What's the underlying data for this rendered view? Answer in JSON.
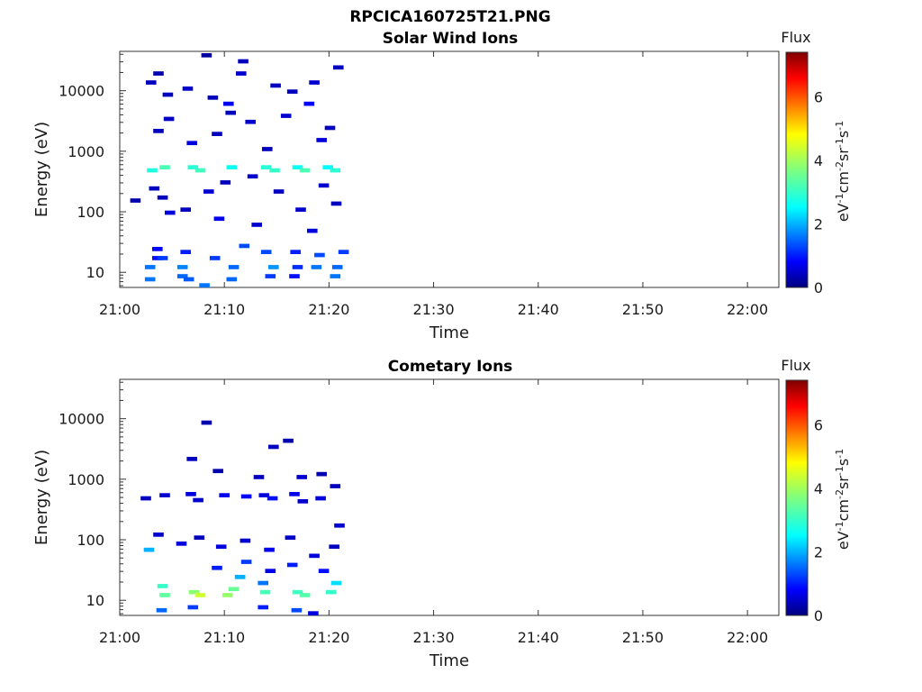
{
  "figure_title": "RPCICA160725T21.PNG",
  "colorbar": {
    "label": "Flux",
    "unit_label_parts": [
      "eV",
      "-1",
      "cm",
      "-2",
      "sr",
      "-1",
      "s",
      "-1"
    ],
    "ticks": [
      "0",
      "2",
      "4",
      "6"
    ],
    "range": [
      0,
      7.4
    ],
    "colormap": "jet"
  },
  "chart_data": [
    {
      "type": "heatmap",
      "title": "Solar Wind Ions",
      "xlabel": "Time",
      "ylabel": "Energy (eV)",
      "xticks": [
        "21:00",
        "21:10",
        "21:20",
        "21:30",
        "21:40",
        "21:50",
        "22:00"
      ],
      "yticks": [
        "10",
        "100",
        "1000",
        "10000"
      ],
      "xlim_minutes": [
        0,
        63
      ],
      "ylim_log10": [
        0.75,
        4.65
      ],
      "y_scale": "log",
      "cells": [
        [
          2.4,
          0.85,
          1.6
        ],
        [
          2.4,
          1.05,
          1.6
        ],
        [
          3.1,
          1.2,
          0.9
        ],
        [
          3.6,
          1.2,
          1.2
        ],
        [
          3.1,
          1.35,
          0.8
        ],
        [
          5.5,
          0.9,
          1.5
        ],
        [
          5.5,
          1.05,
          1.7
        ],
        [
          6.1,
          0.85,
          1.4
        ],
        [
          5.8,
          1.3,
          1.0
        ],
        [
          7.6,
          0.75,
          1.6
        ],
        [
          8.6,
          1.2,
          1.2
        ],
        [
          10.2,
          0.85,
          1.5
        ],
        [
          10.4,
          1.05,
          1.5
        ],
        [
          11.4,
          1.4,
          1.3
        ],
        [
          13.5,
          1.3,
          1.3
        ],
        [
          13.9,
          0.9,
          1.2
        ],
        [
          14.2,
          1.05,
          1.8
        ],
        [
          16.2,
          0.9,
          0.9
        ],
        [
          16.5,
          1.05,
          1.1
        ],
        [
          16.3,
          1.3,
          1.0
        ],
        [
          18.3,
          1.05,
          1.6
        ],
        [
          18.6,
          1.25,
          1.3
        ],
        [
          20.1,
          0.9,
          1.6
        ],
        [
          20.3,
          1.05,
          1.5
        ],
        [
          20.9,
          1.3,
          1.2
        ],
        [
          2.6,
          2.65,
          2.8
        ],
        [
          3.8,
          2.7,
          3.2
        ],
        [
          6.5,
          2.7,
          2.9
        ],
        [
          7.2,
          2.65,
          3.1
        ],
        [
          10.2,
          2.7,
          2.6
        ],
        [
          13.5,
          2.7,
          2.9
        ],
        [
          14.3,
          2.65,
          3.0
        ],
        [
          16.5,
          2.7,
          2.6
        ],
        [
          17.2,
          2.65,
          3.2
        ],
        [
          19.4,
          2.7,
          2.5
        ],
        [
          20.1,
          2.65,
          2.9
        ],
        [
          2.8,
          2.35,
          0.4
        ],
        [
          3.6,
          2.2,
          0.4
        ],
        [
          5.8,
          2.0,
          0.4
        ],
        [
          8.0,
          2.3,
          0.5
        ],
        [
          9.6,
          2.45,
          0.4
        ],
        [
          12.2,
          2.55,
          0.5
        ],
        [
          14.7,
          2.3,
          0.4
        ],
        [
          16.8,
          2.0,
          0.5
        ],
        [
          19.0,
          2.4,
          0.5
        ],
        [
          20.2,
          2.1,
          0.4
        ],
        [
          3.2,
          3.3,
          0.4
        ],
        [
          4.2,
          3.5,
          0.4
        ],
        [
          6.4,
          3.1,
          0.6
        ],
        [
          8.8,
          3.25,
          0.4
        ],
        [
          10.1,
          3.6,
          0.4
        ],
        [
          12.0,
          3.45,
          0.5
        ],
        [
          13.6,
          3.0,
          0.4
        ],
        [
          15.4,
          3.55,
          0.5
        ],
        [
          18.8,
          3.15,
          0.6
        ],
        [
          19.6,
          3.35,
          0.4
        ],
        [
          2.5,
          4.1,
          0.4
        ],
        [
          4.1,
          3.9,
          0.4
        ],
        [
          6.0,
          4.0,
          0.5
        ],
        [
          8.4,
          3.85,
          0.4
        ],
        [
          11.1,
          4.25,
          0.5
        ],
        [
          14.4,
          4.05,
          0.4
        ],
        [
          16.0,
          3.95,
          0.4
        ],
        [
          18.1,
          4.1,
          0.5
        ],
        [
          20.4,
          4.35,
          0.4
        ],
        [
          11.3,
          4.45,
          0.4
        ],
        [
          3.2,
          4.25,
          0.3
        ],
        [
          7.8,
          4.55,
          0.2
        ],
        [
          9.9,
          3.75,
          0.7
        ],
        [
          17.6,
          3.75,
          0.8
        ],
        [
          1.0,
          2.15,
          0.3
        ],
        [
          4.3,
          1.95,
          0.6
        ],
        [
          9.0,
          1.85,
          0.7
        ],
        [
          12.6,
          1.75,
          0.5
        ],
        [
          17.9,
          1.65,
          0.6
        ]
      ]
    },
    {
      "type": "heatmap",
      "title": "Cometary Ions",
      "xlabel": "Time",
      "ylabel": "Energy (eV)",
      "xticks": [
        "21:00",
        "21:10",
        "21:20",
        "21:30",
        "21:40",
        "21:50",
        "22:00"
      ],
      "yticks": [
        "10",
        "100",
        "1000",
        "10000"
      ],
      "xlim_minutes": [
        0,
        63
      ],
      "ylim_log10": [
        0.75,
        4.65
      ],
      "y_scale": "log",
      "cells": [
        [
          3.6,
          1.2,
          3.0
        ],
        [
          3.8,
          1.05,
          3.4
        ],
        [
          6.6,
          1.1,
          3.8
        ],
        [
          7.2,
          1.05,
          4.4
        ],
        [
          9.8,
          1.05,
          3.9
        ],
        [
          10.4,
          1.15,
          3.5
        ],
        [
          11.0,
          1.35,
          2.0
        ],
        [
          13.4,
          1.1,
          3.2
        ],
        [
          13.2,
          1.25,
          1.6
        ],
        [
          16.5,
          1.1,
          3.1
        ],
        [
          17.2,
          1.05,
          3.3
        ],
        [
          19.7,
          1.1,
          3.0
        ],
        [
          20.2,
          1.25,
          2.3
        ],
        [
          3.5,
          0.8,
          1.5
        ],
        [
          6.5,
          0.85,
          1.2
        ],
        [
          13.2,
          0.85,
          1.0
        ],
        [
          16.4,
          0.8,
          1.3
        ],
        [
          18.0,
          0.75,
          0.6
        ],
        [
          8.8,
          1.5,
          1.0
        ],
        [
          11.6,
          1.6,
          1.2
        ],
        [
          13.9,
          1.45,
          0.7
        ],
        [
          16.0,
          1.55,
          1.0
        ],
        [
          19.0,
          1.45,
          0.9
        ],
        [
          2.0,
          2.65,
          0.4
        ],
        [
          3.8,
          2.7,
          0.5
        ],
        [
          6.3,
          2.72,
          0.6
        ],
        [
          7.0,
          2.62,
          0.5
        ],
        [
          9.5,
          2.7,
          0.7
        ],
        [
          11.6,
          2.68,
          0.8
        ],
        [
          13.3,
          2.7,
          0.6
        ],
        [
          14.1,
          2.65,
          0.9
        ],
        [
          16.2,
          2.72,
          0.7
        ],
        [
          17.0,
          2.6,
          0.5
        ],
        [
          18.7,
          2.65,
          0.6
        ],
        [
          20.5,
          2.2,
          0.5
        ],
        [
          3.2,
          2.05,
          0.5
        ],
        [
          5.4,
          1.9,
          0.6
        ],
        [
          7.1,
          2.0,
          0.4
        ],
        [
          9.2,
          1.85,
          0.6
        ],
        [
          11.5,
          1.95,
          0.5
        ],
        [
          13.8,
          1.8,
          0.7
        ],
        [
          15.8,
          2.0,
          0.5
        ],
        [
          18.1,
          1.7,
          0.6
        ],
        [
          20.0,
          1.85,
          0.4
        ],
        [
          6.4,
          3.3,
          0.4
        ],
        [
          7.8,
          3.9,
          0.3
        ],
        [
          8.9,
          3.1,
          0.3
        ],
        [
          12.8,
          3.0,
          0.4
        ],
        [
          14.2,
          3.5,
          0.4
        ],
        [
          15.6,
          3.6,
          0.3
        ],
        [
          16.9,
          3.0,
          0.5
        ],
        [
          18.8,
          3.05,
          0.3
        ],
        [
          20.1,
          2.85,
          0.4
        ],
        [
          2.3,
          1.8,
          2.0
        ]
      ]
    }
  ]
}
